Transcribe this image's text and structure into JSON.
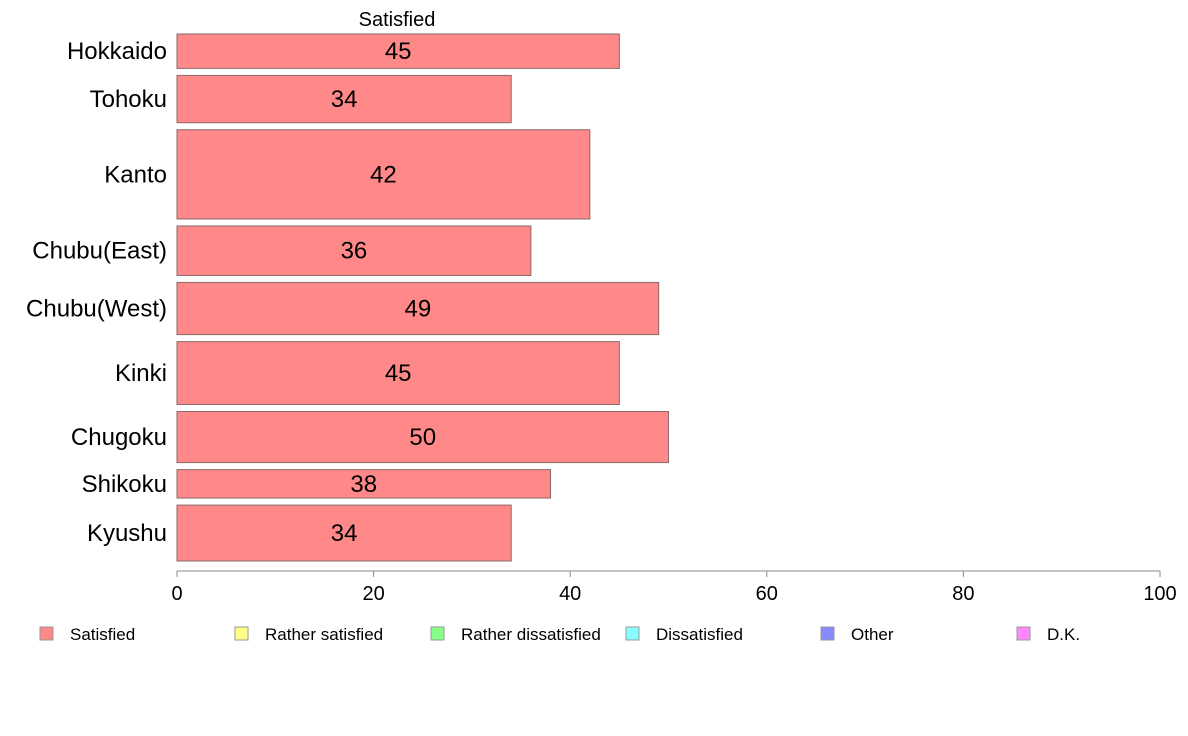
{
  "chart_data": {
    "type": "bar",
    "orientation": "horizontal",
    "title": "",
    "column_header": "Satisfied",
    "xlabel": "",
    "ylabel": "",
    "xlim": [
      0,
      100
    ],
    "x_ticks": [
      0,
      20,
      40,
      60,
      80,
      100
    ],
    "grid": false,
    "categories": [
      "Hokkaido",
      "Tohoku",
      "Kanto",
      "Chubu(East)",
      "Chubu(West)",
      "Kinki",
      "Chugoku",
      "Shikoku",
      "Kyushu"
    ],
    "category_weights": [
      0.64,
      0.88,
      1.66,
      0.92,
      0.97,
      1.17,
      0.95,
      0.53,
      1.04
    ],
    "series": [
      {
        "name": "Satisfied",
        "color": "#ff8888",
        "values": [
          45,
          34,
          42,
          36,
          49,
          45,
          50,
          38,
          34
        ]
      }
    ],
    "legend": {
      "placement": "bottom",
      "items": [
        {
          "label": "Satisfied",
          "color": "#ff8888"
        },
        {
          "label": "Rather satisfied",
          "color": "#ffff88"
        },
        {
          "label": "Rather dissatisfied",
          "color": "#88ff88"
        },
        {
          "label": "Dissatisfied",
          "color": "#88ffff"
        },
        {
          "label": "Other",
          "color": "#8888ff"
        },
        {
          "label": "D.K.",
          "color": "#ff88ff"
        }
      ]
    }
  }
}
